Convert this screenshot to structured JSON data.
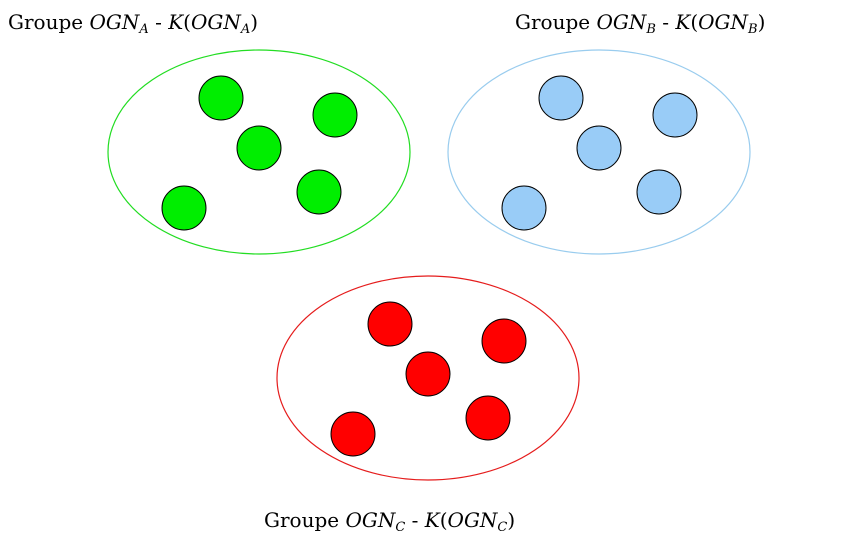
{
  "groups": [
    {
      "id": "a",
      "prefix": "Groupe ",
      "name": "OGN",
      "subscript": "A",
      "sep": " - ",
      "k": "K",
      "open": "(",
      "name2": "OGN",
      "subscript2": "A",
      "close": ")",
      "ellipse_color": "#22dd22",
      "dot_color": "#00ee00",
      "dot_count": 5
    },
    {
      "id": "b",
      "prefix": "Groupe ",
      "name": "OGN",
      "subscript": "B",
      "sep": " - ",
      "k": "K",
      "open": "(",
      "name2": "OGN",
      "subscript2": "B",
      "close": ")",
      "ellipse_color": "#99ccee",
      "dot_color": "#99ccf7",
      "dot_count": 5
    },
    {
      "id": "c",
      "prefix": "Groupe ",
      "name": "OGN",
      "subscript": "C",
      "sep": " - ",
      "k": "K",
      "open": "(",
      "name2": "OGN",
      "subscript2": "C",
      "close": ")",
      "ellipse_color": "#e51c1c",
      "dot_color": "#ff0000",
      "dot_count": 5
    }
  ]
}
